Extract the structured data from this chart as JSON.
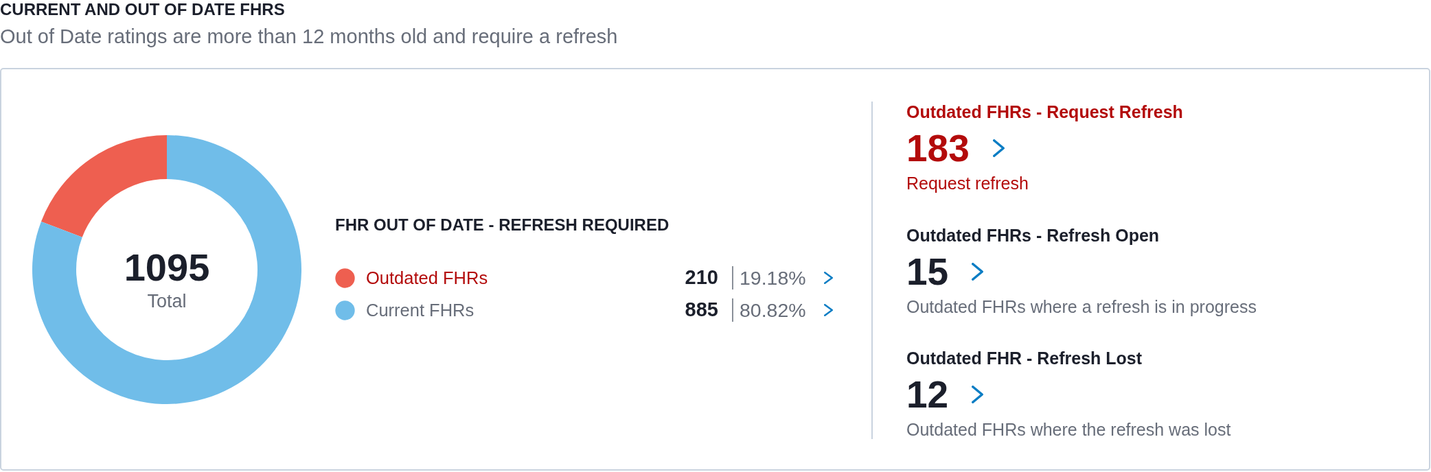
{
  "chart_data": [
    {
      "type": "donut",
      "title": "CURRENT AND OUT OF DATE FHRS",
      "subtitle": "Out of Date ratings are more than 12 months old and require a refresh",
      "legend_title": "FHR OUT OF DATE - REFRESH REQUIRED",
      "categories": [
        "Outdated FHRs",
        "Current FHRs"
      ],
      "values": [
        210,
        885
      ],
      "colors": [
        "#ee5f50",
        "#70bde9"
      ],
      "data_labels": true,
      "legend": "right",
      "annotations": [
        "1095",
        "Total",
        {
          "text": "19.18%",
          "x": "Outdated FHRs"
        },
        {
          "text": "80.82%",
          "x": "Current FHRs"
        }
      ]
    },
    {
      "type": "other",
      "categories": [
        "Outdated FHRs - Request Refresh",
        "Outdated FHRs - Refresh Open",
        "Outdated FHR - Refresh Lost"
      ],
      "values": [
        183,
        15,
        12
      ],
      "colors": [
        "#b30b0b",
        "#1b1f2b",
        "#1b1f2b"
      ],
      "data_labels": true,
      "annotations": [
        "Request refresh",
        "Outdated FHRs where a refresh is in progress",
        "Outdated FHRs where the refresh was lost"
      ]
    }
  ]
}
